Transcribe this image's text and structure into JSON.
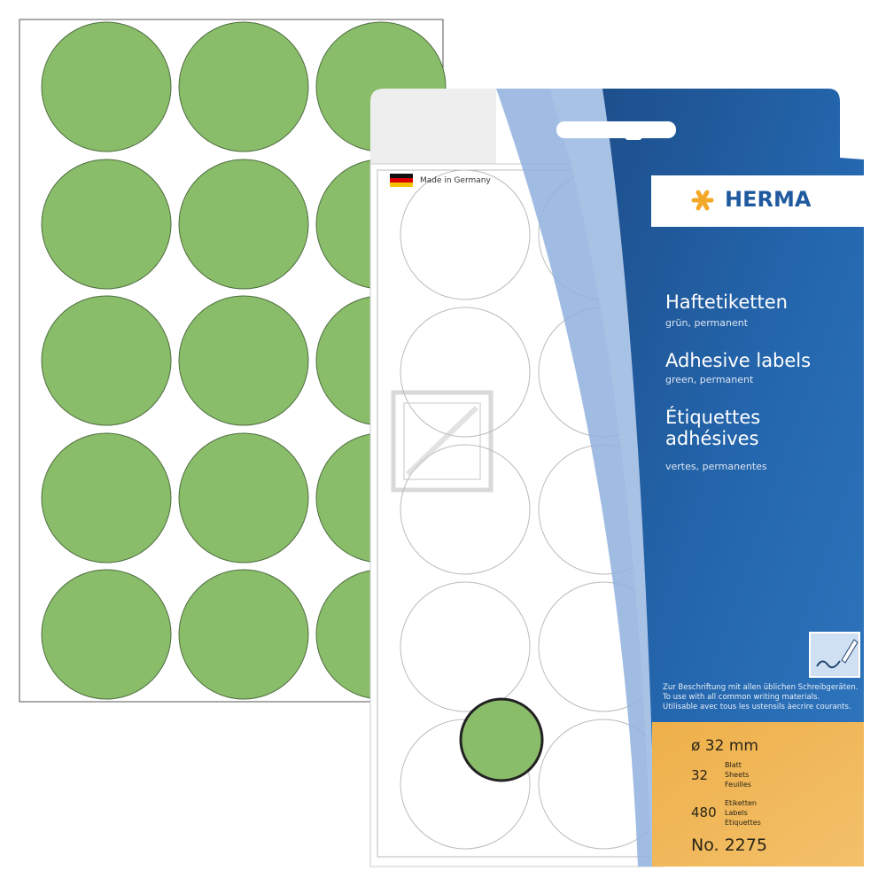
{
  "colors": {
    "label_green": "#8abd6a",
    "brand_blue": "#1f5a9e",
    "accent_orange": "#f0b14a",
    "logo_star": "#f3a927"
  },
  "back_sheet": {
    "label_rows": 5,
    "label_columns": 3
  },
  "package": {
    "made_in": "Made in Germany",
    "flag_icon": "german-flag",
    "brand": "HERMA",
    "titles": [
      {
        "title": "Haftetiketten",
        "subtitle": "grün, permanent"
      },
      {
        "title": "Adhesive labels",
        "subtitle": "green, permanent"
      },
      {
        "title": "Étiquettes adhésives",
        "subtitle": "vertes, permanentes"
      }
    ],
    "writing_icon": "pen-writing-icon",
    "writing_note": [
      "Zur Beschriftung mit allen üblichen Schreibgeräten.",
      "To use with all common writing materials.",
      "Utilisable avec tous les ustensils àecrire courants."
    ],
    "diameter": "ø 32 mm",
    "sheets": {
      "value": "32",
      "labels": [
        "Blatt",
        "Sheets",
        "Feuilles"
      ]
    },
    "labels": {
      "value": "480",
      "labels": [
        "Etiketten",
        "Labels",
        "Etiquettes"
      ]
    },
    "article_no": "No. 2275"
  }
}
